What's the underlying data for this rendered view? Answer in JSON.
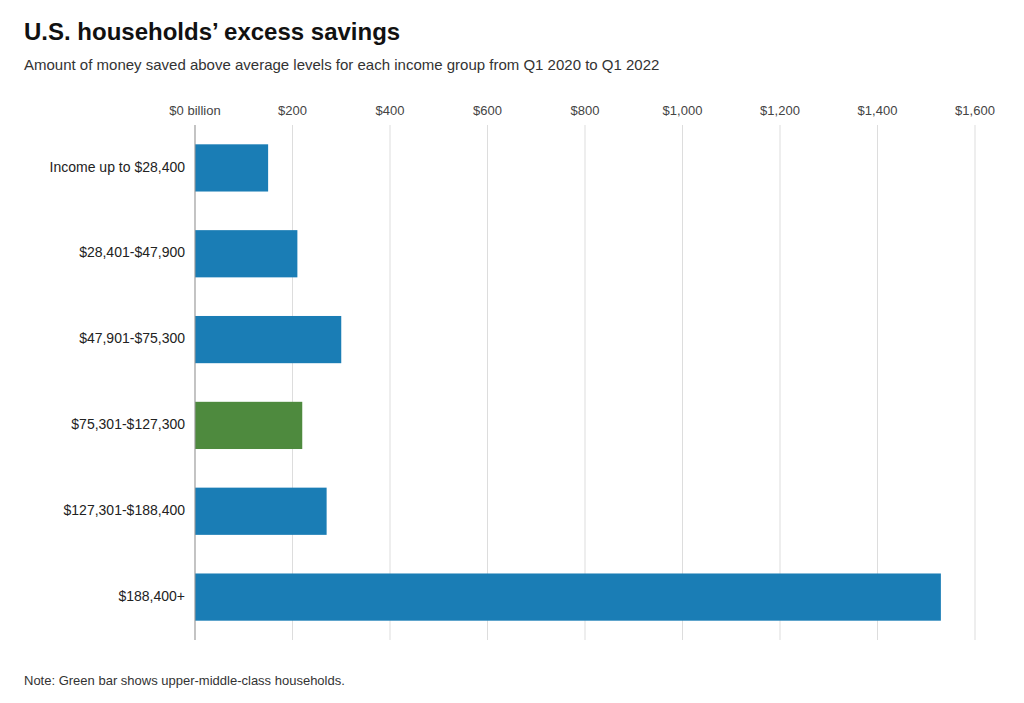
{
  "chart_data": {
    "type": "bar",
    "orientation": "horizontal",
    "title": "U.S. households’ excess savings",
    "subtitle": "Amount of money saved above average levels for each income group from Q1 2020 to Q1 2022",
    "annotations": [
      "Note: Green bar shows upper-middle-class households."
    ],
    "categories": [
      "Income up to $28,400",
      "$28,401-$47,900",
      "$47,901-$75,300",
      "$75,301-$127,300",
      "$127,301-$188,400",
      "$188,400+"
    ],
    "values": [
      150,
      210,
      300,
      220,
      270,
      1530
    ],
    "colors": [
      "#1a7db5",
      "#1a7db5",
      "#1a7db5",
      "#4e8a3e",
      "#1a7db5",
      "#1a7db5"
    ],
    "xlim": [
      0,
      1600
    ],
    "xticks": [
      {
        "value": 0,
        "label": "$0 billion"
      },
      {
        "value": 200,
        "label": "$200"
      },
      {
        "value": 400,
        "label": "$400"
      },
      {
        "value": 600,
        "label": "$600"
      },
      {
        "value": 800,
        "label": "$800"
      },
      {
        "value": 1000,
        "label": "$1,000"
      },
      {
        "value": 1200,
        "label": "$1,200"
      },
      {
        "value": 1400,
        "label": "$1,400"
      },
      {
        "value": 1600,
        "label": "$1,600"
      }
    ],
    "grid": true
  }
}
